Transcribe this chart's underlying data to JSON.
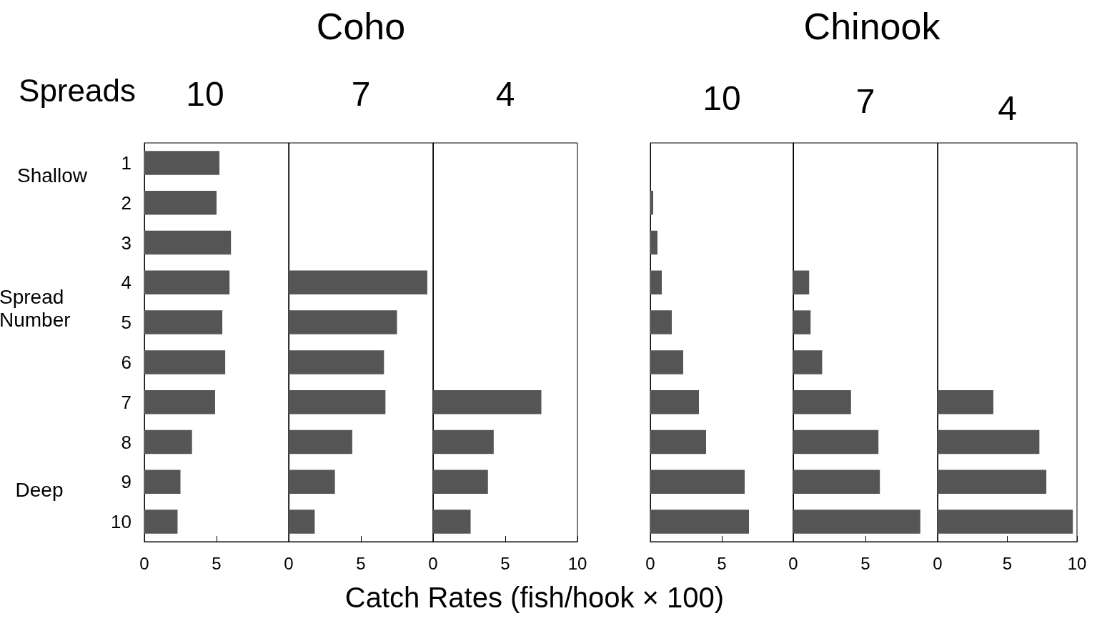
{
  "chart_data": [
    {
      "type": "bar",
      "orientation": "horizontal",
      "title": "10",
      "ylabel": "Spread Number",
      "xlabel": "Catch Rates (fish/hook × 100)",
      "annotations": [
        "Coho",
        "Spreads",
        "Shallow",
        "Deep"
      ],
      "categories": [
        "1",
        "2",
        "3",
        "4",
        "5",
        "6",
        "7",
        "8",
        "9",
        "10"
      ],
      "values": [
        5.2,
        5.0,
        6.0,
        5.9,
        5.4,
        5.6,
        4.9,
        3.3,
        2.5,
        2.3
      ],
      "color": "#555555",
      "xlim": [
        0,
        10
      ],
      "xticks": [
        0,
        5
      ]
    },
    {
      "type": "bar",
      "orientation": "horizontal",
      "title": "7",
      "categories": [
        null,
        null,
        null,
        null,
        null,
        null,
        null,
        null,
        null,
        null
      ],
      "values": [
        null,
        null,
        null,
        9.6,
        7.5,
        6.6,
        6.7,
        4.4,
        3.2,
        1.8
      ],
      "color": "#555555",
      "xlim": [
        0,
        10
      ],
      "xticks": [
        0,
        5
      ],
      "tick_labels": "x"
    },
    {
      "type": "bar",
      "orientation": "horizontal",
      "title": "4",
      "categories": [
        null,
        null,
        null,
        null,
        null,
        null,
        null,
        null,
        null,
        null
      ],
      "values": [
        null,
        null,
        null,
        null,
        null,
        null,
        7.5,
        4.2,
        3.8,
        2.6
      ],
      "color": "#555555",
      "xlim": [
        0,
        10
      ],
      "xticks": [
        0,
        5,
        10
      ],
      "tick_labels": "x"
    },
    {
      "type": "bar",
      "orientation": "horizontal",
      "title": "10",
      "annotations": [
        "Chinook"
      ],
      "categories": [
        null,
        null,
        null,
        null,
        null,
        null,
        null,
        null,
        null,
        null
      ],
      "values": [
        null,
        0.2,
        0.5,
        0.8,
        1.5,
        2.3,
        3.4,
        3.9,
        6.6,
        6.9
      ],
      "color": "#555555",
      "xlim": [
        0,
        10
      ],
      "xticks": [
        0,
        5
      ],
      "tick_labels": "x"
    },
    {
      "type": "bar",
      "orientation": "horizontal",
      "title": "7",
      "categories": [
        null,
        null,
        null,
        null,
        null,
        null,
        null,
        null,
        null,
        null
      ],
      "values": [
        null,
        null,
        null,
        1.1,
        1.2,
        2.0,
        4.0,
        5.9,
        6.0,
        8.8
      ],
      "color": "#555555",
      "xlim": [
        0,
        10
      ],
      "xticks": [
        0,
        5
      ],
      "tick_labels": "x"
    },
    {
      "type": "bar",
      "orientation": "horizontal",
      "title": "4",
      "categories": [
        null,
        null,
        null,
        null,
        null,
        null,
        null,
        null,
        null,
        null
      ],
      "values": [
        null,
        null,
        null,
        null,
        null,
        null,
        4.0,
        7.3,
        7.8,
        9.7
      ],
      "color": "#555555",
      "xlim": [
        0,
        10
      ],
      "xticks": [
        0,
        5,
        10
      ],
      "tick_labels": "x"
    }
  ]
}
